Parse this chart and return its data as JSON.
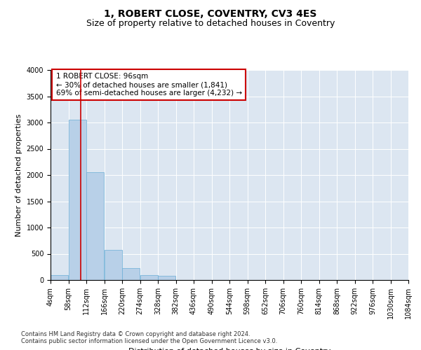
{
  "title": "1, ROBERT CLOSE, COVENTRY, CV3 4ES",
  "subtitle": "Size of property relative to detached houses in Coventry",
  "xlabel": "Distribution of detached houses by size in Coventry",
  "ylabel": "Number of detached properties",
  "footer_line1": "Contains HM Land Registry data © Crown copyright and database right 2024.",
  "footer_line2": "Contains public sector information licensed under the Open Government Licence v3.0.",
  "annotation_title": "1 ROBERT CLOSE: 96sqm",
  "annotation_line2": "← 30% of detached houses are smaller (1,841)",
  "annotation_line3": "69% of semi-detached houses are larger (4,232) →",
  "property_size_sqm": 96,
  "bin_edges": [
    4,
    58,
    112,
    166,
    220,
    274,
    328,
    382,
    436,
    490,
    544,
    598,
    652,
    706,
    760,
    814,
    868,
    922,
    976,
    1030,
    1084
  ],
  "bar_heights": [
    100,
    3050,
    2050,
    570,
    230,
    100,
    80,
    0,
    0,
    0,
    0,
    0,
    0,
    0,
    0,
    0,
    0,
    0,
    0,
    0
  ],
  "bar_color": "#b8d0e8",
  "bar_edgecolor": "#6baed6",
  "vline_color": "#cc0000",
  "vline_x": 96,
  "annotation_box_edgecolor": "#cc0000",
  "annotation_box_facecolor": "white",
  "background_color": "#dce6f1",
  "ylim": [
    0,
    4000
  ],
  "yticks": [
    0,
    500,
    1000,
    1500,
    2000,
    2500,
    3000,
    3500,
    4000
  ],
  "title_fontsize": 10,
  "subtitle_fontsize": 9,
  "axis_label_fontsize": 8,
  "tick_fontsize": 7,
  "annotation_fontsize": 7.5,
  "footer_fontsize": 6
}
